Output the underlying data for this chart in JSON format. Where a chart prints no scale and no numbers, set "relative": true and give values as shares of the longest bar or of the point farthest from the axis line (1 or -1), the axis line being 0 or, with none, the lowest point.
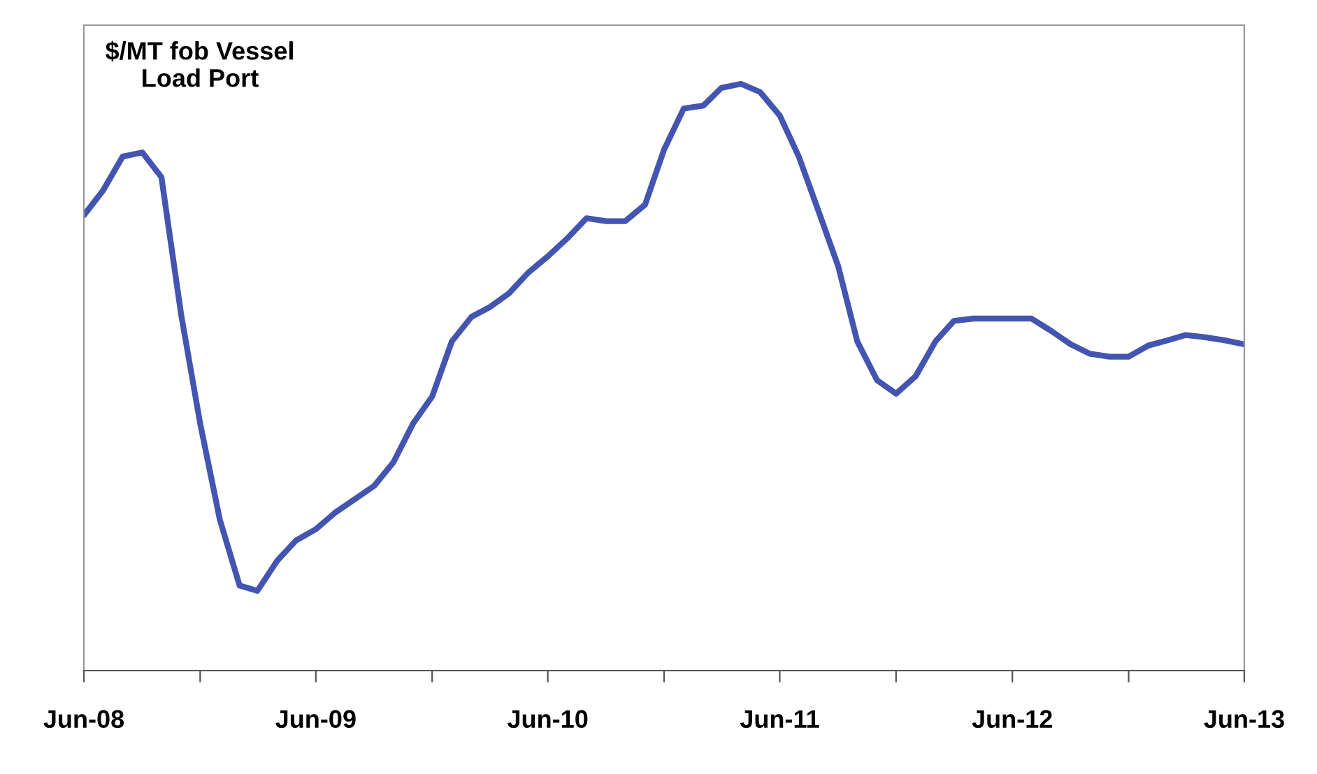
{
  "chart_data": {
    "type": "line",
    "title": "$/MT fob Vessel\nLoad Port",
    "relative": true,
    "x": [
      "2008-06",
      "2008-07",
      "2008-08",
      "2008-09",
      "2008-10",
      "2008-11",
      "2008-12",
      "2009-01",
      "2009-02",
      "2009-03",
      "2009-04",
      "2009-05",
      "2009-06",
      "2009-07",
      "2009-08",
      "2009-09",
      "2009-10",
      "2009-11",
      "2009-12",
      "2010-01",
      "2010-02",
      "2010-03",
      "2010-04",
      "2010-05",
      "2010-06",
      "2010-07",
      "2010-08",
      "2010-09",
      "2010-10",
      "2010-11",
      "2010-12",
      "2011-01",
      "2011-02",
      "2011-03",
      "2011-04",
      "2011-05",
      "2011-06",
      "2011-07",
      "2011-08",
      "2011-09",
      "2011-10",
      "2011-11",
      "2011-12",
      "2012-01",
      "2012-02",
      "2012-03",
      "2012-04",
      "2012-05",
      "2012-06",
      "2012-07",
      "2012-08",
      "2012-09",
      "2012-10",
      "2012-11",
      "2012-12",
      "2013-01",
      "2013-02",
      "2013-03",
      "2013-04",
      "2013-05",
      "2013-06"
    ],
    "series": [
      {
        "color": "#4355b0",
        "values": [
          0.776,
          0.818,
          0.876,
          0.883,
          0.841,
          0.607,
          0.421,
          0.257,
          0.145,
          0.136,
          0.187,
          0.222,
          0.241,
          0.269,
          0.292,
          0.315,
          0.355,
          0.421,
          0.467,
          0.561,
          0.603,
          0.619,
          0.643,
          0.678,
          0.706,
          0.736,
          0.771,
          0.766,
          0.766,
          0.794,
          0.888,
          0.958,
          0.963,
          0.993,
          1,
          0.986,
          0.946,
          0.876,
          0.783,
          0.689,
          0.561,
          0.495,
          0.472,
          0.502,
          0.561,
          0.596,
          0.6,
          0.6,
          0.6,
          0.6,
          0.579,
          0.556,
          0.54,
          0.535,
          0.535,
          0.554,
          0.563,
          0.572,
          0.568,
          0.563,
          0.556
        ]
      }
    ],
    "xlim": [
      "2008-06",
      "2013-06"
    ],
    "xticks": [
      {
        "value": "2008-06",
        "label": "Jun-08"
      },
      {
        "value": "2008-12",
        "label": null
      },
      {
        "value": "2009-06",
        "label": "Jun-09"
      },
      {
        "value": "2009-12",
        "label": null
      },
      {
        "value": "2010-06",
        "label": "Jun-10"
      },
      {
        "value": "2010-12",
        "label": null
      },
      {
        "value": "2011-06",
        "label": "Jun-11"
      },
      {
        "value": "2011-12",
        "label": null
      },
      {
        "value": "2012-06",
        "label": "Jun-12"
      },
      {
        "value": "2012-12",
        "label": null
      },
      {
        "value": "2013-06",
        "label": "Jun-13"
      }
    ],
    "line_style": "solid",
    "marker": "none",
    "grid": false,
    "legend": false
  }
}
